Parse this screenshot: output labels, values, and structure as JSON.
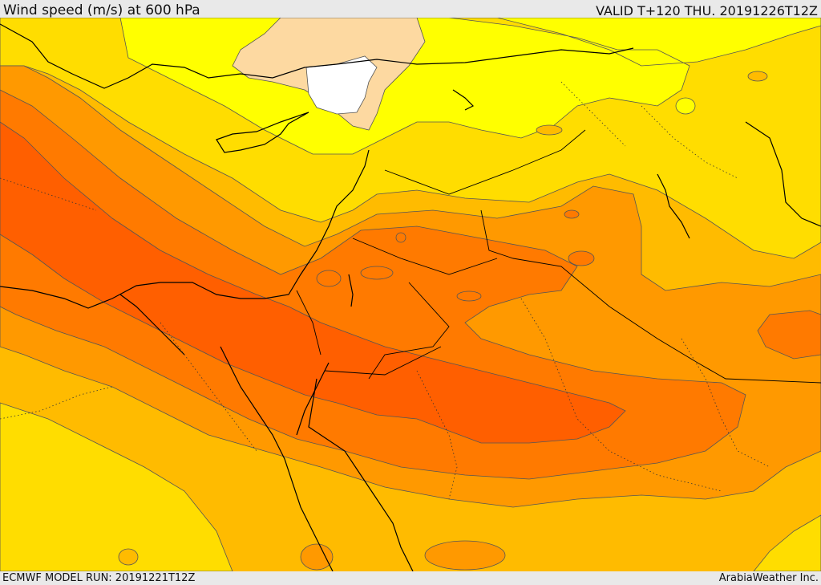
{
  "header": {
    "title": "Wind speed (m/s) at 600 hPa",
    "valid": "VALID T+120 THU. 20191226T12Z"
  },
  "footer": {
    "model_run": "ECMWF MODEL RUN: 20191221T12Z",
    "credit": "ArabiaWeather Inc."
  },
  "colors": {
    "white_band": "#ffffff",
    "peach": "#fdd9a1",
    "yellow": "#ffff00",
    "gold": "#ffdd00",
    "amber": "#ffbb00",
    "orange": "#ff9900",
    "dark_orange": "#ff7a00",
    "red_orange": "#ff5f00",
    "contour": "#555555",
    "coast": "#000000"
  }
}
